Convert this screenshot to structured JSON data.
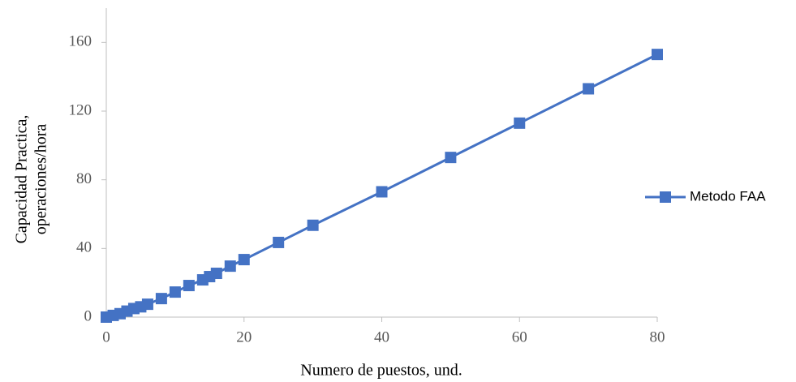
{
  "chart_data": {
    "type": "line",
    "xlabel": "Numero de puestos, und.",
    "ylabel": [
      "Capacidad Practica,",
      "operaciones/hora"
    ],
    "x": [
      0,
      1,
      2,
      3,
      4,
      5,
      6,
      8,
      10,
      12,
      14,
      15,
      16,
      18,
      20,
      25,
      30,
      40,
      50,
      60,
      70,
      80
    ],
    "series": [
      {
        "name": "Metodo FAA",
        "color": "#4472c4",
        "values": [
          0,
          1,
          2,
          3.5,
          5,
          6,
          7.5,
          10.8,
          14.6,
          18.4,
          21.7,
          23.6,
          25.5,
          29.7,
          33.5,
          43.5,
          53.5,
          73,
          93,
          113,
          133,
          153
        ]
      }
    ],
    "xlim": [
      0,
      80
    ],
    "xticks": [
      0,
      20,
      40,
      60,
      80
    ],
    "ylim": [
      0,
      180
    ],
    "yticks": [
      0,
      40,
      80,
      120,
      160
    ],
    "grid": false,
    "legend": "right"
  }
}
